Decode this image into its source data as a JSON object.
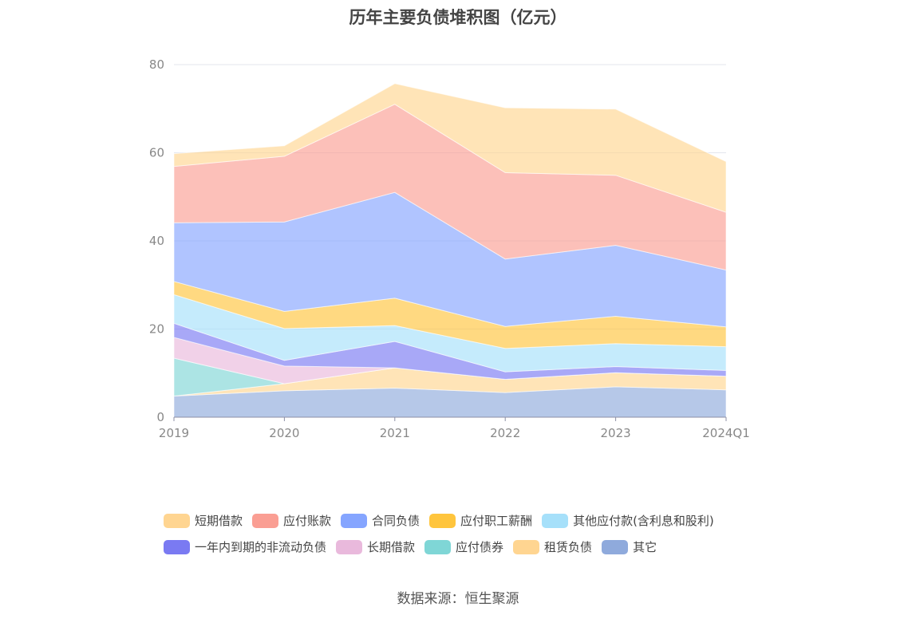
{
  "chart_data": {
    "type": "area",
    "stacked": true,
    "title": "历年主要负债堆积图（亿元）",
    "categories": [
      "2019",
      "2020",
      "2021",
      "2022",
      "2023",
      "2024Q1"
    ],
    "ylim": [
      0,
      80
    ],
    "yticks": [
      0,
      20,
      40,
      60,
      80
    ],
    "grid": true,
    "legend_position": "bottom",
    "series": [
      {
        "name": "其它",
        "color": "#8faadc",
        "values": [
          4.8,
          6.0,
          6.6,
          5.6,
          6.9,
          6.2
        ]
      },
      {
        "name": "租赁负债",
        "color": "#ffd591",
        "values": [
          0.0,
          1.6,
          4.6,
          3.0,
          3.2,
          3.1
        ]
      },
      {
        "name": "应付债券",
        "color": "#7fd6d6",
        "values": [
          8.6,
          0.0,
          0.0,
          0.0,
          0.0,
          0.0
        ]
      },
      {
        "name": "长期借款",
        "color": "#e9b9dc",
        "values": [
          4.7,
          4.0,
          0.0,
          0.0,
          0.0,
          0.0
        ]
      },
      {
        "name": "一年内到期的非流动负债",
        "color": "#7a7af2",
        "values": [
          3.2,
          1.3,
          6.0,
          1.7,
          1.4,
          1.3
        ]
      },
      {
        "name": "其他应付款(含利息和股利)",
        "color": "#a6e0fa",
        "values": [
          6.5,
          7.2,
          3.6,
          5.3,
          5.2,
          5.4
        ]
      },
      {
        "name": "应付职工薪酬",
        "color": "#ffc53d",
        "values": [
          3.0,
          3.9,
          6.2,
          5.0,
          6.2,
          4.5
        ]
      },
      {
        "name": "合同负债",
        "color": "#85a5ff",
        "values": [
          13.3,
          20.3,
          24.0,
          15.3,
          16.1,
          12.9
        ]
      },
      {
        "name": "应付账款",
        "color": "#fa9e93",
        "values": [
          12.8,
          14.9,
          20.0,
          19.6,
          15.9,
          13.1
        ]
      },
      {
        "name": "短期借款",
        "color": "#ffd591",
        "values": [
          2.9,
          2.4,
          4.7,
          14.7,
          15.0,
          11.5
        ]
      }
    ],
    "legend_rows": [
      [
        "短期借款",
        "应付账款",
        "合同负债",
        "应付职工薪酬",
        "其他应付款(含利息和股利)"
      ],
      [
        "一年内到期的非流动负债",
        "长期借款",
        "应付债券",
        "租赁负债",
        "其它"
      ]
    ],
    "source": "数据来源：恒生聚源"
  }
}
